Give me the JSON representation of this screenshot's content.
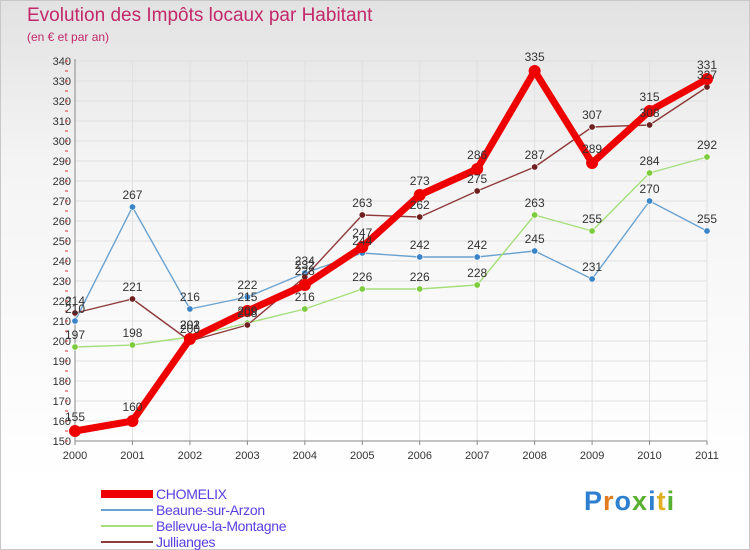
{
  "title": "Evolution des Impôts locaux par Habitant",
  "subtitle": "(en € et par an)",
  "logo": {
    "text": "Proxiti",
    "colors": [
      "#2f7fd0",
      "#e07b22",
      "#2f7fd0",
      "#58b030",
      "#2f7fd0",
      "#e0b020",
      "#58b030"
    ]
  },
  "chart_data": {
    "type": "line",
    "x": [
      "2000",
      "2001",
      "2002",
      "2003",
      "2004",
      "2005",
      "2006",
      "2007",
      "2008",
      "2009",
      "2010",
      "2011"
    ],
    "ylim": [
      150,
      340
    ],
    "yticks": [
      150,
      160,
      170,
      180,
      190,
      200,
      210,
      220,
      230,
      240,
      250,
      260,
      270,
      280,
      290,
      300,
      310,
      320,
      330,
      340
    ],
    "grid": true,
    "legend_position": "bottom-left",
    "series": [
      {
        "name": "Beaune-sur-Arzon",
        "color": "#6aa2d0",
        "marker": "#3a84c8",
        "width": 1.4,
        "r": 3.2,
        "values": [
          210,
          267,
          216,
          222,
          234,
          244,
          242,
          242,
          245,
          231,
          270,
          255
        ]
      },
      {
        "name": "Bellevue-la-Montagne",
        "color": "#a6de7c",
        "marker": "#7ccc3e",
        "width": 1.4,
        "r": 3.2,
        "values": [
          197,
          198,
          202,
          209,
          216,
          226,
          226,
          228,
          263,
          255,
          284,
          292
        ]
      },
      {
        "name": "Jullianges",
        "color": "#8e3a3a",
        "marker": "#6e1f1f",
        "width": 1.4,
        "r": 3.2,
        "values": [
          214,
          221,
          200,
          208,
          232,
          263,
          262,
          275,
          287,
          307,
          308,
          327
        ]
      },
      {
        "name": "CHOMELIX",
        "color": "#ee0000",
        "marker": "#ee0000",
        "width": 7,
        "r": 6,
        "values": [
          155,
          160,
          201,
          215,
          228,
          247,
          273,
          286,
          335,
          289,
          315,
          331
        ]
      }
    ],
    "legend_order": [
      "CHOMELIX",
      "Beaune-sur-Arzon",
      "Bellevue-la-Montagne",
      "Jullianges"
    ]
  }
}
